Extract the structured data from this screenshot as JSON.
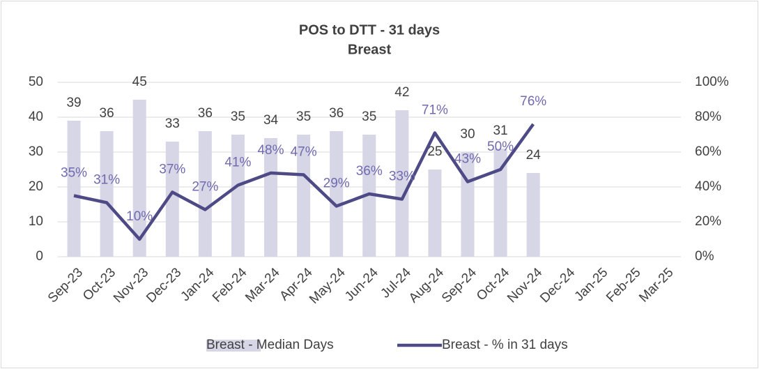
{
  "chart_data": {
    "type": "bar+line",
    "title": "POS to DTT - 31 days",
    "subtitle": "Breast",
    "categories": [
      "Sep-23",
      "Oct-23",
      "Nov-23",
      "Dec-23",
      "Jan-24",
      "Feb-24",
      "Mar-24",
      "Apr-24",
      "May-24",
      "Jun-24",
      "Jul-24",
      "Aug-24",
      "Sep-24",
      "Oct-24",
      "Nov-24",
      "Dec-24",
      "Jan-25",
      "Feb-25",
      "Mar-25"
    ],
    "series": [
      {
        "name": "Breast - Median Days",
        "type": "bar",
        "color": "#d6d6e6",
        "axis": "y",
        "values": [
          39,
          36,
          45,
          33,
          36,
          35,
          34,
          35,
          36,
          35,
          42,
          25,
          30,
          31,
          24,
          null,
          null,
          null,
          null
        ]
      },
      {
        "name": "Breast - % in 31 days",
        "type": "line",
        "color": "#4d4a86",
        "label_color": "#6f6aae",
        "axis": "y2",
        "values": [
          35,
          31,
          10,
          37,
          27,
          41,
          48,
          47,
          29,
          36,
          33,
          71,
          43,
          50,
          76,
          null,
          null,
          null,
          null
        ],
        "value_labels": [
          "35%",
          "31%",
          "10%",
          "37%",
          "27%",
          "41%",
          "48%",
          "47%",
          "29%",
          "36%",
          "33%",
          "71%",
          "43%",
          "50%",
          "76%",
          null,
          null,
          null,
          null
        ]
      }
    ],
    "ylim": [
      0,
      50
    ],
    "yticks": [
      0,
      10,
      20,
      30,
      40,
      50
    ],
    "y2lim": [
      0,
      100
    ],
    "y2ticks": [
      {
        "value": 0,
        "label": "0%"
      },
      {
        "value": 20,
        "label": "20%"
      },
      {
        "value": 40,
        "label": "40%"
      },
      {
        "value": 60,
        "label": "60%"
      },
      {
        "value": 80,
        "label": "80%"
      },
      {
        "value": 100,
        "label": "100%"
      }
    ],
    "grid": true,
    "legend": "bottom"
  }
}
